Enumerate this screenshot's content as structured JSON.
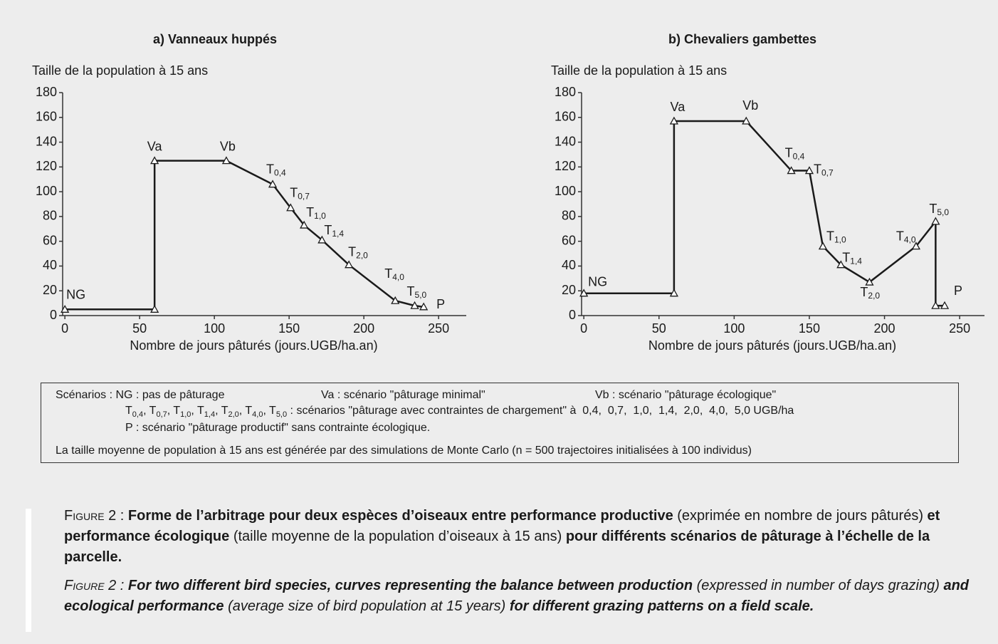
{
  "chart_data": [
    {
      "type": "line",
      "title": "a) Vanneaux huppés",
      "y_label": "Taille de la population à 15 ans",
      "x_label": "Nombre de jours pâturés (jours.UGB/ha.an)",
      "x": [
        0,
        60,
        60,
        108,
        139,
        151,
        160,
        172,
        190,
        221,
        234,
        240
      ],
      "series": [
        {
          "color": "#1a1a1a",
          "values": [
            5,
            5,
            125,
            125,
            106,
            87,
            73,
            61,
            41,
            12,
            8,
            7
          ]
        }
      ],
      "point_labels": [
        {
          "t": "NG"
        },
        null,
        {
          "t": "Va"
        },
        {
          "t": "Vb"
        },
        {
          "t": "T",
          "sub": "0,4"
        },
        {
          "t": "T",
          "sub": "0,7"
        },
        {
          "t": "T",
          "sub": "1,0"
        },
        {
          "t": "T",
          "sub": "1,4"
        },
        {
          "t": "T",
          "sub": "2,0"
        },
        {
          "t": "T",
          "sub": "4,0"
        },
        {
          "t": "T",
          "sub": "5,0"
        },
        {
          "t": "P"
        }
      ],
      "xlim": [
        -1.5,
        268.5
      ],
      "xticks": [
        0,
        50,
        100,
        150,
        200,
        250
      ],
      "ylim": [
        0,
        180
      ],
      "yticks": [
        0,
        20,
        40,
        60,
        80,
        100,
        120,
        140,
        160,
        180
      ]
    },
    {
      "type": "line",
      "title": "b) Chevaliers gambettes",
      "y_label": "Taille de la population à 15 ans",
      "x_label": "Nombre de jours pâturés (jours.UGB/ha.an)",
      "x": [
        0,
        60,
        60,
        108,
        138,
        150,
        159,
        171,
        190,
        221,
        234,
        234,
        240
      ],
      "series": [
        {
          "color": "#1a1a1a",
          "values": [
            18,
            18,
            157,
            157,
            117,
            117,
            56,
            41,
            27,
            56,
            76,
            8,
            8
          ]
        }
      ],
      "point_labels": [
        {
          "t": "NG"
        },
        null,
        {
          "t": "Va"
        },
        {
          "t": "Vb"
        },
        {
          "t": "T",
          "sub": "0,4"
        },
        {
          "t": "T",
          "sub": "0,7"
        },
        {
          "t": "T",
          "sub": "1,0"
        },
        {
          "t": "T",
          "sub": "1,4"
        },
        {
          "t": "T",
          "sub": "2,0"
        },
        {
          "t": "T",
          "sub": "4,0"
        },
        {
          "t": "T",
          "sub": "5,0"
        },
        null,
        {
          "t": "P"
        }
      ],
      "xlim": [
        -1.5,
        266.5
      ],
      "xticks": [
        0,
        50,
        100,
        150,
        200,
        250
      ],
      "ylim": [
        0,
        180
      ],
      "yticks": [
        0,
        20,
        40,
        60,
        80,
        100,
        120,
        140,
        160,
        180
      ]
    }
  ],
  "legend_box": {
    "line1": [
      "Scénarios : NG : pas de pâturage",
      "Va : scénario \"pâturage minimal\"",
      "Vb : scénario \"pâturage écologique\""
    ],
    "line2": [
      {
        "t": "T",
        "sub": "0,4"
      },
      {
        "t": ", T",
        "sub": "0,7"
      },
      {
        "t": ", T",
        "sub": "1,0"
      },
      {
        "t": ", T",
        "sub": "1,4"
      },
      {
        "t": ", T",
        "sub": "2,0"
      },
      {
        "t": ", T",
        "sub": "4,0"
      },
      {
        "t": ", T",
        "sub": "5,0"
      },
      {
        "t": " : scénarios \"pâturage avec contraintes de chargement\" à  0,4,  0,7,  1,0,  1,4,  2,0,  4,0,  5,0 UGB/ha"
      }
    ],
    "line3": "P : scénario \"pâturage productif\" sans contrainte écologique.",
    "line4": "La taille moyenne de population à 15 ans est générée par des simulations de Monte Carlo (n = 500 trajectoires initialisées à 100 individus)"
  },
  "caption": {
    "fr": [
      {
        "t": "Figure 2 : ",
        "s": "caps"
      },
      {
        "t": "Forme de l’arbitrage pour deux espèces d’oiseaux entre performance productive",
        "s": "b"
      },
      {
        "t": " (exprimée en nombre de jours pâturés) "
      },
      {
        "t": "et performance écologique",
        "s": "b"
      },
      {
        "t": " (taille moyenne de la population d’oiseaux à 15 ans) "
      },
      {
        "t": "pour différents scénarios de pâturage à l’échelle de la parcelle.",
        "s": "b"
      }
    ],
    "en": [
      {
        "t": "Figure 2 : ",
        "s": "caps"
      },
      {
        "t": "For two different bird species, curves representing the balance between production",
        "s": "b"
      },
      {
        "t": " (expressed in number of days grazing) "
      },
      {
        "t": "and ecological performance",
        "s": "b"
      },
      {
        "t": " (average size of bird population at 15 years) "
      },
      {
        "t": "for different grazing patterns on a field scale.",
        "s": "b"
      }
    ]
  }
}
